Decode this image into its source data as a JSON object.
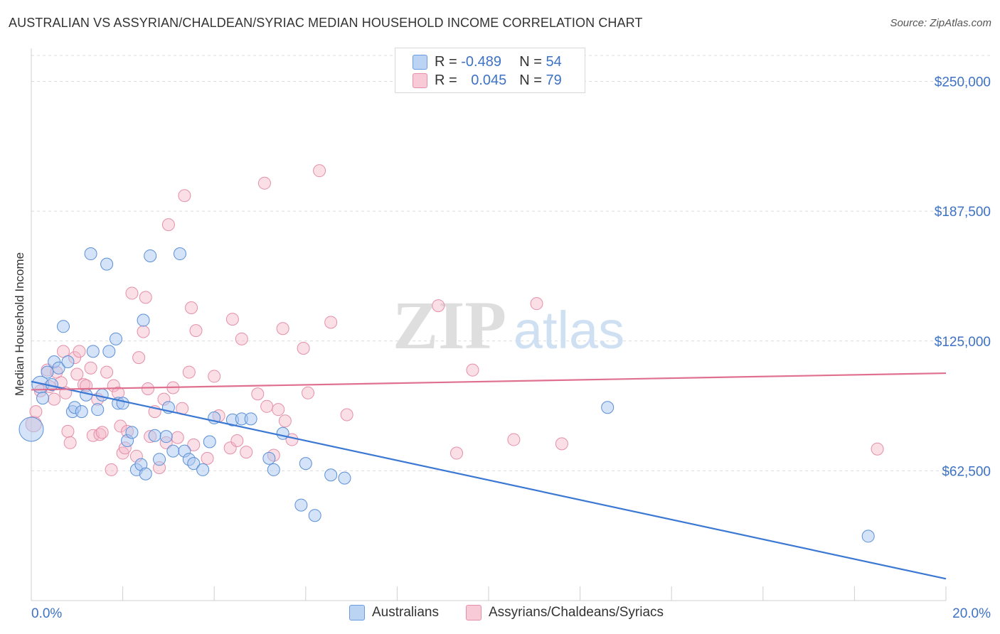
{
  "header": {
    "title": "AUSTRALIAN VS ASSYRIAN/CHALDEAN/SYRIAC MEDIAN HOUSEHOLD INCOME CORRELATION CHART",
    "source": "Source: ZipAtlas.com"
  },
  "watermark": {
    "zip": "ZIP",
    "atlas": "atlas"
  },
  "colors": {
    "blue": "#3a78d4",
    "blue_fill": "#a9c8f0",
    "pink": "#e0708f",
    "pink_fill": "#f5b8c9",
    "axis_text": "#3d72c4"
  },
  "legend": {
    "rows": [
      {
        "r_label": "R = ",
        "r_value": "-0.489",
        "n_label": "N = ",
        "n_value": "54"
      },
      {
        "r_label": "R = ",
        "r_value": "0.045",
        "n_label": "N = ",
        "n_value": "79"
      }
    ]
  },
  "bottom_legend": {
    "australians": "Australians",
    "assyrians": "Assyrians/Chaldeans/Syriacs"
  },
  "chart_data": {
    "type": "scatter",
    "title": "AUSTRALIAN VS ASSYRIAN/CHALDEAN/SYRIAC MEDIAN HOUSEHOLD INCOME CORRELATION CHART",
    "ylabel": "Median Household Income",
    "xlabel": "",
    "xlim": [
      0,
      20
    ],
    "ylim": [
      0,
      262500
    ],
    "x_tick_labels": [
      "0.0%",
      "20.0%"
    ],
    "y_ticks": [
      62500,
      125000,
      187500,
      250000
    ],
    "y_tick_labels": [
      "$62,500",
      "$125,000",
      "$187,500",
      "$250,000"
    ],
    "grid": "horizontal dashed",
    "legend_position": "top-center",
    "series": [
      {
        "name": "Australians",
        "color": "#3a78d4",
        "trend": {
          "x": [
            0,
            20
          ],
          "y": [
            105500,
            10500
          ]
        },
        "points": [
          [
            0.0,
            82500,
            2
          ],
          [
            0.2,
            104000,
            1.4
          ],
          [
            0.25,
            97500,
            1
          ],
          [
            0.35,
            110000,
            1
          ],
          [
            0.45,
            104000,
            1
          ],
          [
            0.5,
            115000,
            1
          ],
          [
            0.6,
            112000,
            1
          ],
          [
            0.7,
            132000,
            1
          ],
          [
            0.8,
            115000,
            1
          ],
          [
            0.9,
            91000,
            1
          ],
          [
            0.95,
            93000,
            1
          ],
          [
            1.1,
            91000,
            1
          ],
          [
            1.2,
            99000,
            1
          ],
          [
            1.3,
            167000,
            1
          ],
          [
            1.35,
            120000,
            1
          ],
          [
            1.45,
            92000,
            1
          ],
          [
            1.55,
            99000,
            1
          ],
          [
            1.65,
            162000,
            1
          ],
          [
            1.7,
            120000,
            1
          ],
          [
            1.85,
            126000,
            1
          ],
          [
            1.9,
            95000,
            1
          ],
          [
            2.0,
            95000,
            1
          ],
          [
            2.1,
            77000,
            1
          ],
          [
            2.2,
            81000,
            1
          ],
          [
            2.3,
            63000,
            1
          ],
          [
            2.4,
            65500,
            1
          ],
          [
            2.45,
            135000,
            1
          ],
          [
            2.5,
            61000,
            1
          ],
          [
            2.6,
            166000,
            1
          ],
          [
            2.7,
            79500,
            1
          ],
          [
            2.8,
            68000,
            1
          ],
          [
            2.95,
            79000,
            1
          ],
          [
            3.0,
            93000,
            1
          ],
          [
            3.1,
            72000,
            1
          ],
          [
            3.25,
            167000,
            1
          ],
          [
            3.35,
            72000,
            1
          ],
          [
            3.45,
            68000,
            1
          ],
          [
            3.55,
            66000,
            1
          ],
          [
            3.75,
            63000,
            1
          ],
          [
            3.9,
            76500,
            1
          ],
          [
            4.0,
            88000,
            1
          ],
          [
            4.4,
            87000,
            1
          ],
          [
            4.6,
            87500,
            1
          ],
          [
            4.8,
            87500,
            1
          ],
          [
            5.2,
            68500,
            1
          ],
          [
            5.3,
            63000,
            1
          ],
          [
            5.5,
            80500,
            1
          ],
          [
            6.0,
            66000,
            1
          ],
          [
            5.9,
            46000,
            1
          ],
          [
            6.2,
            41000,
            1
          ],
          [
            6.55,
            60500,
            1
          ],
          [
            6.85,
            59000,
            1
          ],
          [
            12.6,
            93000,
            1
          ],
          [
            18.3,
            31000,
            1
          ]
        ]
      },
      {
        "name": "Assyrians/Chaldeans/Syriacs",
        "color": "#e0708f",
        "trend": {
          "x": [
            0,
            20
          ],
          "y": [
            101500,
            109500
          ]
        },
        "points": [
          [
            0.05,
            85000,
            1.3
          ],
          [
            0.1,
            91000,
            1
          ],
          [
            0.2,
            101000,
            1
          ],
          [
            0.35,
            111000,
            1
          ],
          [
            0.4,
            103000,
            1
          ],
          [
            0.5,
            97000,
            1
          ],
          [
            0.55,
            110000,
            1
          ],
          [
            0.65,
            105000,
            1
          ],
          [
            0.7,
            120000,
            1
          ],
          [
            0.75,
            100000,
            1
          ],
          [
            0.8,
            81500,
            1
          ],
          [
            0.85,
            76000,
            1
          ],
          [
            0.95,
            117000,
            1
          ],
          [
            1.0,
            109000,
            1
          ],
          [
            1.05,
            120000,
            1
          ],
          [
            1.15,
            104000,
            1
          ],
          [
            1.2,
            103500,
            1
          ],
          [
            1.3,
            112000,
            1
          ],
          [
            1.35,
            79500,
            1
          ],
          [
            1.45,
            97000,
            1
          ],
          [
            1.5,
            80000,
            1
          ],
          [
            1.55,
            81000,
            1
          ],
          [
            1.65,
            110000,
            1
          ],
          [
            1.75,
            63000,
            1
          ],
          [
            1.8,
            103500,
            1
          ],
          [
            1.9,
            100000,
            1
          ],
          [
            1.95,
            84000,
            1
          ],
          [
            2.0,
            71000,
            1
          ],
          [
            2.05,
            73500,
            1
          ],
          [
            2.1,
            81500,
            1
          ],
          [
            2.2,
            148000,
            1
          ],
          [
            2.3,
            69500,
            1
          ],
          [
            2.35,
            117000,
            1
          ],
          [
            2.45,
            129500,
            1
          ],
          [
            2.5,
            146000,
            1
          ],
          [
            2.55,
            102000,
            1
          ],
          [
            2.6,
            79000,
            1
          ],
          [
            2.7,
            91000,
            1
          ],
          [
            2.8,
            64000,
            1
          ],
          [
            2.9,
            97000,
            1
          ],
          [
            2.95,
            76000,
            1
          ],
          [
            3.0,
            181000,
            1
          ],
          [
            3.1,
            102500,
            1
          ],
          [
            3.2,
            78500,
            1
          ],
          [
            3.3,
            92500,
            1
          ],
          [
            3.35,
            195000,
            1
          ],
          [
            3.45,
            110000,
            1
          ],
          [
            3.5,
            141000,
            1
          ],
          [
            3.55,
            75000,
            1
          ],
          [
            3.6,
            130000,
            1
          ],
          [
            3.85,
            68500,
            1
          ],
          [
            4.0,
            108000,
            1
          ],
          [
            4.1,
            89000,
            1
          ],
          [
            4.35,
            73500,
            1
          ],
          [
            4.4,
            135500,
            1
          ],
          [
            4.5,
            77000,
            1
          ],
          [
            4.6,
            126000,
            1
          ],
          [
            4.7,
            71500,
            1
          ],
          [
            4.95,
            99500,
            1
          ],
          [
            5.1,
            201000,
            1
          ],
          [
            5.15,
            93500,
            1
          ],
          [
            5.3,
            70000,
            1
          ],
          [
            5.4,
            92000,
            1
          ],
          [
            5.5,
            131000,
            1
          ],
          [
            5.55,
            86500,
            1
          ],
          [
            5.7,
            77500,
            1
          ],
          [
            5.95,
            121500,
            1
          ],
          [
            6.05,
            100000,
            1
          ],
          [
            6.3,
            207000,
            1
          ],
          [
            6.55,
            134000,
            1
          ],
          [
            6.9,
            89500,
            1
          ],
          [
            8.9,
            142000,
            1
          ],
          [
            9.3,
            71000,
            1
          ],
          [
            9.65,
            111000,
            1
          ],
          [
            10.55,
            77500,
            1
          ],
          [
            11.05,
            143000,
            1
          ],
          [
            11.6,
            75500,
            1
          ],
          [
            18.5,
            73000,
            1
          ]
        ]
      }
    ]
  }
}
